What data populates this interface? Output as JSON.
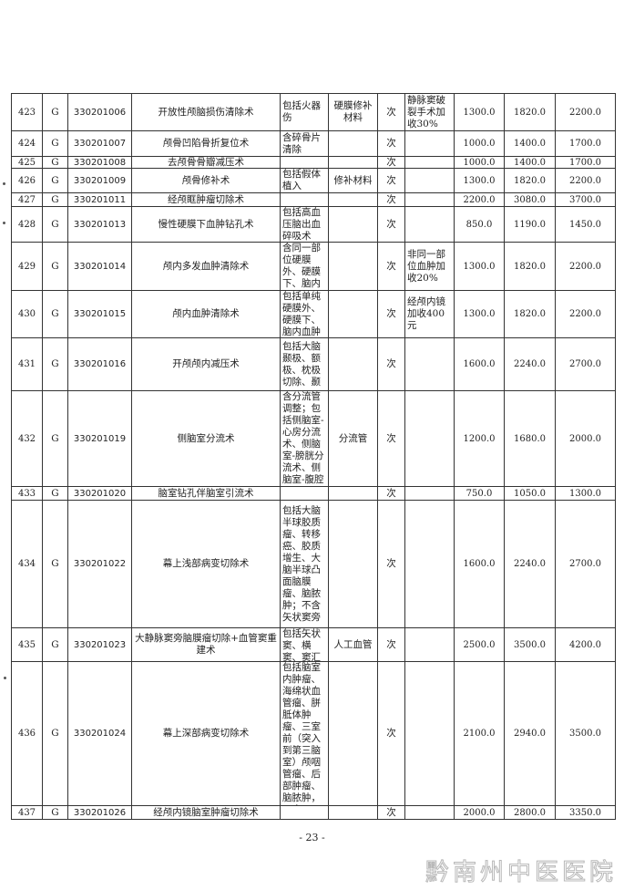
{
  "rows": [
    {
      "no": "423",
      "cat": "G",
      "code": "330201006",
      "name": "开放性颅脑损伤清除术",
      "content": "包括火器伤",
      "excluded": "硬膜修补材料",
      "unit": "次",
      "note": "静脉窦破裂手术加收30%",
      "p1": "1300.0",
      "p2": "1820.0",
      "p3": "2200.0"
    },
    {
      "no": "424",
      "cat": "G",
      "code": "330201007",
      "name": "颅骨凹陷骨折复位术",
      "content": "含碎骨片清除",
      "excluded": "",
      "unit": "次",
      "note": "",
      "p1": "1000.0",
      "p2": "1400.0",
      "p3": "1700.0"
    },
    {
      "no": "425",
      "cat": "G",
      "code": "330201008",
      "name": "去颅骨骨瓣减压术",
      "content": "",
      "excluded": "",
      "unit": "次",
      "note": "",
      "p1": "1000.0",
      "p2": "1400.0",
      "p3": "1700.0"
    },
    {
      "no": "426",
      "cat": "G",
      "code": "330201009",
      "name": "颅骨修补术",
      "content": "包括假体植入",
      "excluded": "修补材料",
      "unit": "次",
      "note": "",
      "p1": "1300.0",
      "p2": "1820.0",
      "p3": "2200.0"
    },
    {
      "no": "427",
      "cat": "G",
      "code": "330201011",
      "name": "经颅眶肿瘤切除术",
      "content": "",
      "excluded": "",
      "unit": "次",
      "note": "",
      "p1": "2200.0",
      "p2": "3080.0",
      "p3": "3700.0"
    },
    {
      "no": "428",
      "cat": "G",
      "code": "330201013",
      "name": "慢性硬膜下血肿钻孔术",
      "content": "包括高血压脑出血碎吸术",
      "excluded": "",
      "unit": "次",
      "note": "",
      "p1": "850.0",
      "p2": "1190.0",
      "p3": "1450.0"
    },
    {
      "no": "429",
      "cat": "G",
      "code": "330201014",
      "name": "颅内多发血肿清除术",
      "content": "含同一部位硬膜外、硬膜下、脑内血",
      "excluded": "",
      "unit": "次",
      "note": "非同一部位血肿加收20%",
      "p1": "1300.0",
      "p2": "1820.0",
      "p3": "2200.0"
    },
    {
      "no": "430",
      "cat": "G",
      "code": "330201015",
      "name": "颅内血肿清除术",
      "content": "包括单纯硬膜外、硬膜下、脑内血肿",
      "excluded": "",
      "unit": "次",
      "note": "经颅内镜加收400元",
      "p1": "1300.0",
      "p2": "1820.0",
      "p3": "2200.0"
    },
    {
      "no": "431",
      "cat": "G",
      "code": "330201016",
      "name": "开颅颅内减压术",
      "content": "包括大脑颞极、额极、枕极切除、颞",
      "excluded": "",
      "unit": "次",
      "note": "",
      "p1": "1600.0",
      "p2": "2240.0",
      "p3": "2700.0"
    },
    {
      "no": "432",
      "cat": "G",
      "code": "330201019",
      "name": "侧脑室分流术",
      "content": "含分流管调整；包括侧脑室-心房分流术、侧脑室-膀胱分流术、侧脑室-腹腔",
      "excluded": "分流管",
      "unit": "次",
      "note": "",
      "p1": "1200.0",
      "p2": "1680.0",
      "p3": "2000.0"
    },
    {
      "no": "433",
      "cat": "G",
      "code": "330201020",
      "name": "脑室钻孔伴脑室引流术",
      "content": "",
      "excluded": "",
      "unit": "次",
      "note": "",
      "p1": "750.0",
      "p2": "1050.0",
      "p3": "1300.0"
    },
    {
      "no": "434",
      "cat": "G",
      "code": "330201022",
      "name": "幕上浅部病变切除术",
      "content": "包括大脑半球胶质瘤、转移癌、胶质增生、大脑半球凸面脑膜瘤、脑脓肿；不含矢状窦旁",
      "excluded": "",
      "unit": "次",
      "note": "",
      "p1": "1600.0",
      "p2": "2240.0",
      "p3": "2700.0"
    },
    {
      "no": "435",
      "cat": "G",
      "code": "330201023",
      "name": "大静脉窦旁脑膜瘤切除+血管窦重建术",
      "content": "包括矢状窦、横窦、窦汇区",
      "excluded": "人工血管",
      "unit": "次",
      "note": "",
      "p1": "2500.0",
      "p2": "3500.0",
      "p3": "4200.0"
    },
    {
      "no": "436",
      "cat": "G",
      "code": "330201024",
      "name": "幕上深部病变切除术",
      "content": "包括脑室内肿瘤、海绵状血管瘤、胼胝体肿瘤、三室前（突入到第三脑室）颅咽管瘤、后部肿瘤、脑脓肿，不含",
      "excluded": "",
      "unit": "次",
      "note": "",
      "p1": "2100.0",
      "p2": "2940.0",
      "p3": "3500.0"
    },
    {
      "no": "437",
      "cat": "G",
      "code": "330201026",
      "name": "经颅内镜脑室肿瘤切除术",
      "content": "",
      "excluded": "",
      "unit": "次",
      "note": "",
      "p1": "2000.0",
      "p2": "2800.0",
      "p3": "3350.0"
    }
  ],
  "footer": {
    "page_number": "- 23 -",
    "watermark": "黔南州中医医院"
  }
}
